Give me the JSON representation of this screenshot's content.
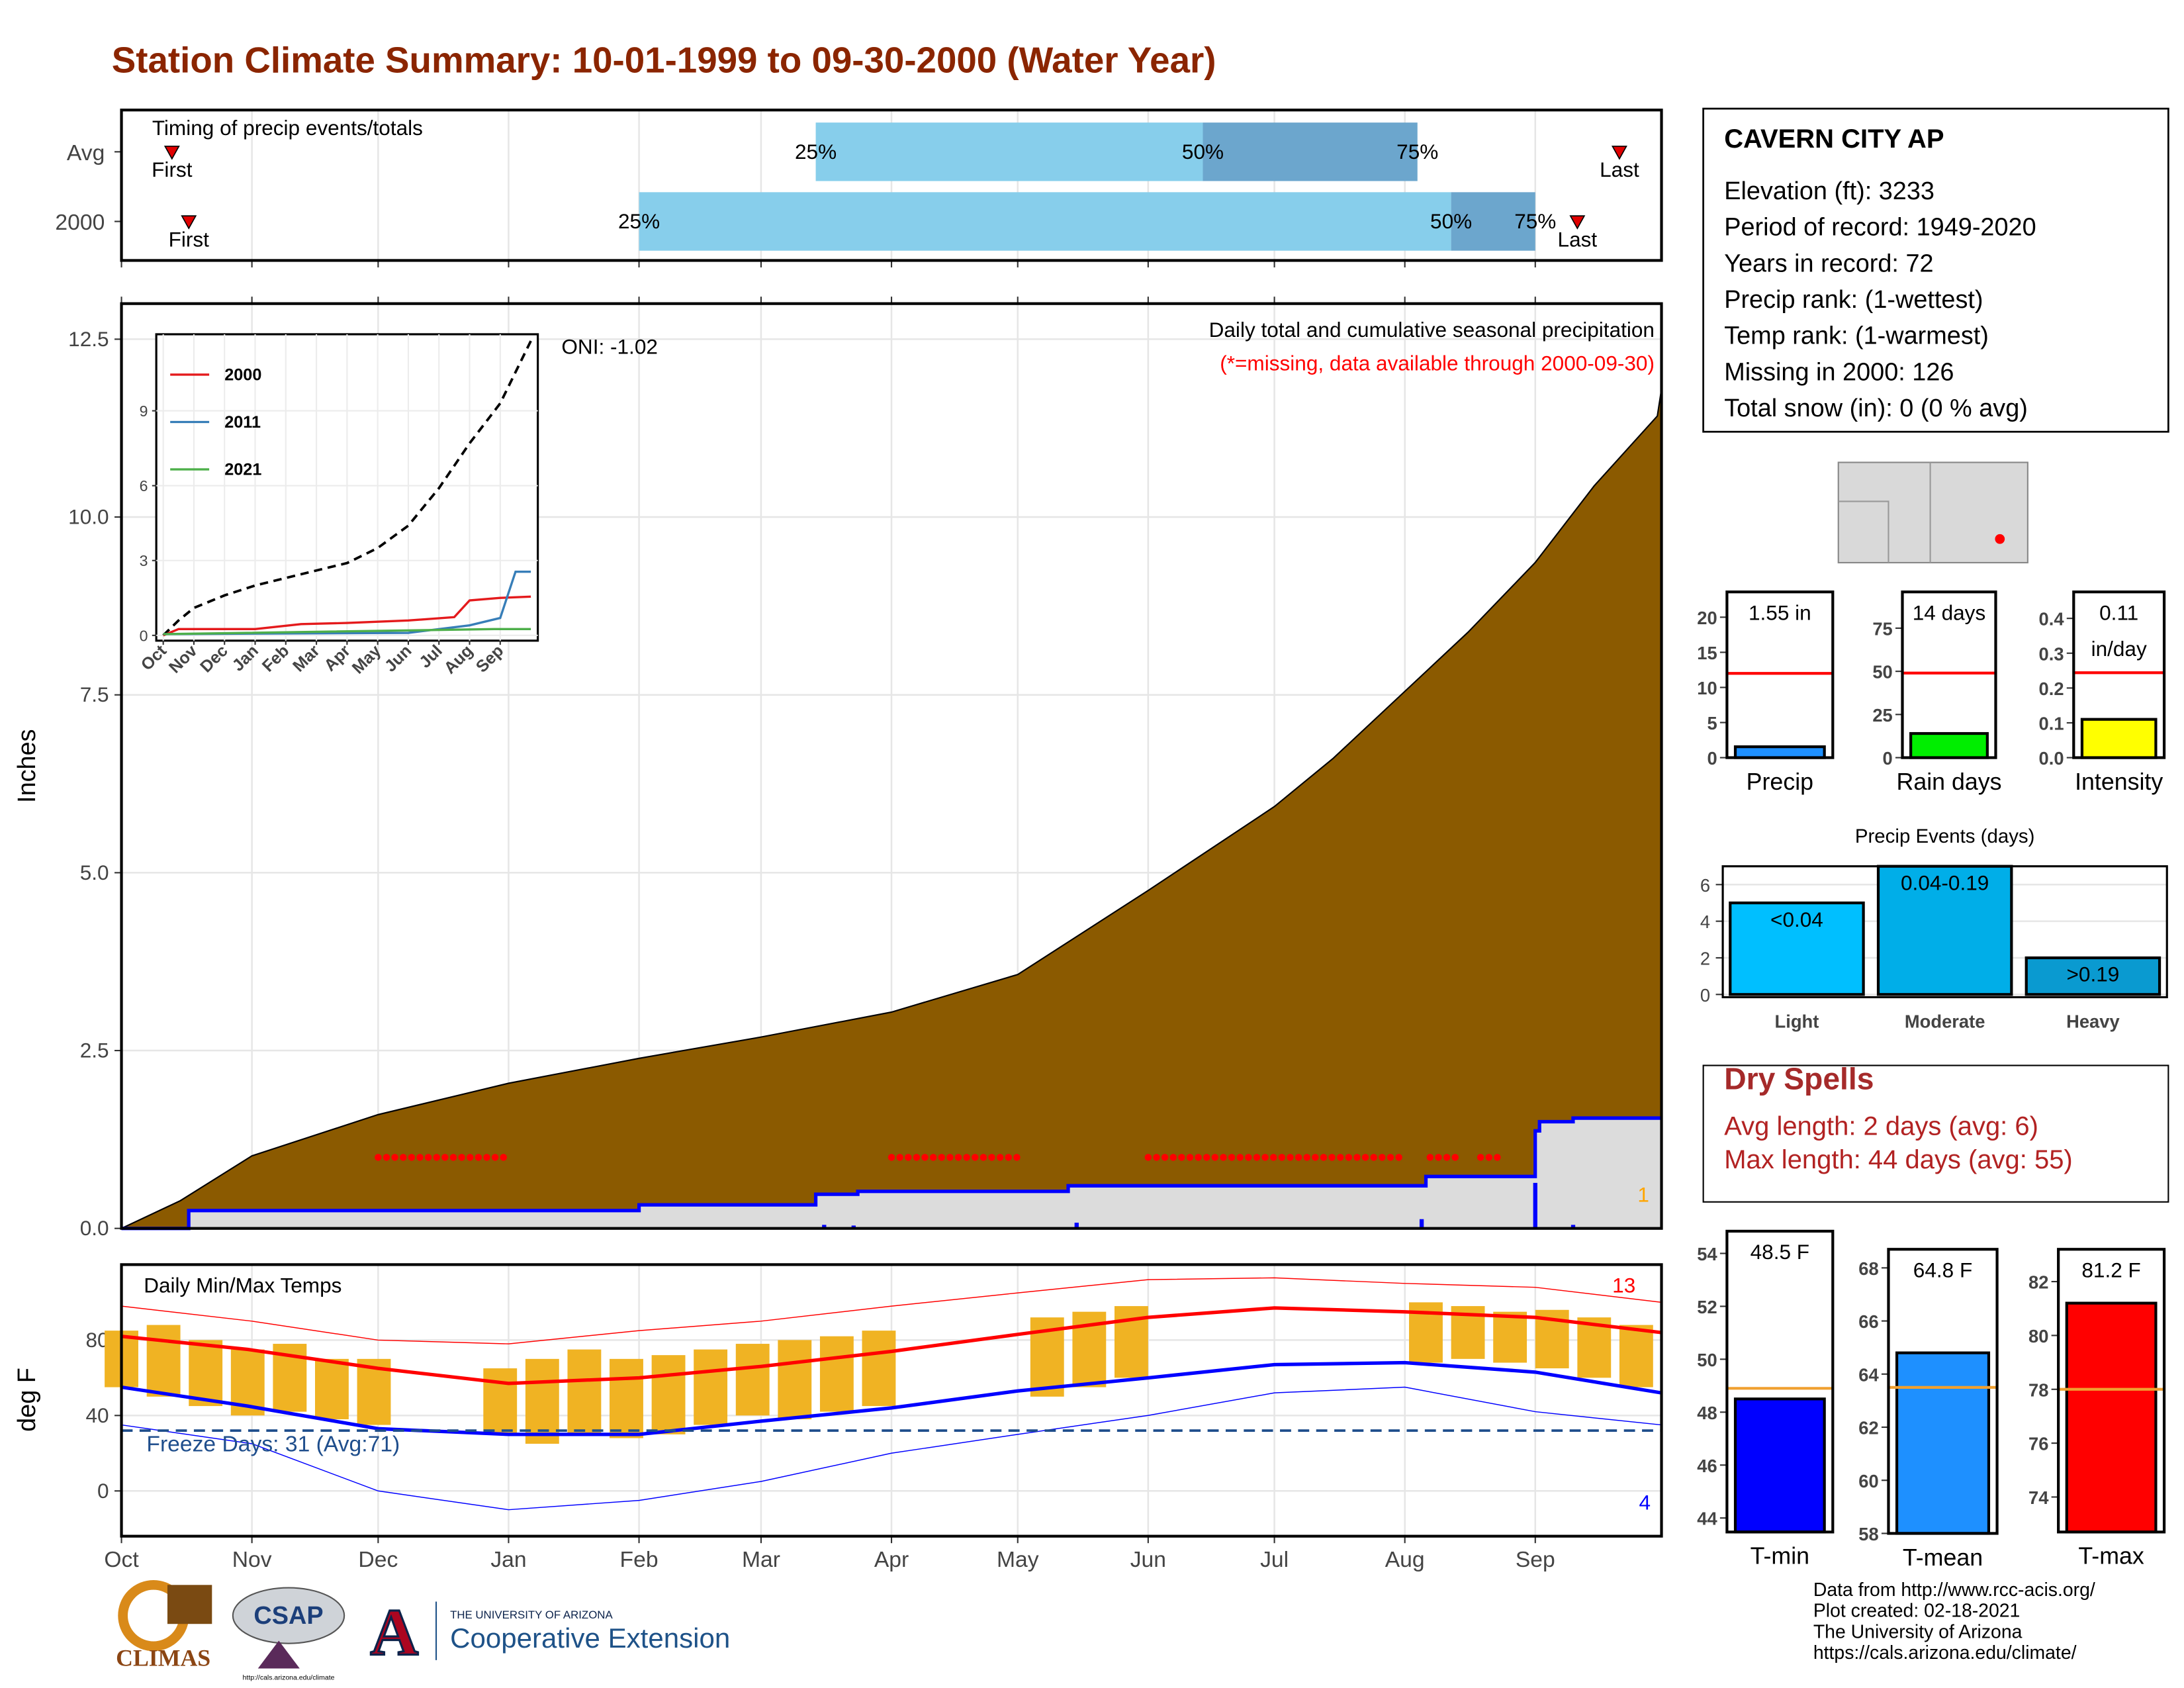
{
  "title": "Station Climate Summary: 10-01-1999 to 09-30-2000 (Water Year)",
  "chart_data": [
    {
      "type": "timing",
      "title": "Timing of precip events/totals",
      "xlim": [
        0,
        366
      ],
      "xticks": [
        0,
        31,
        61,
        92,
        123,
        152,
        183,
        213,
        244,
        274,
        305,
        336
      ],
      "grid": true,
      "labels": {
        "first": "First",
        "last": "Last",
        "p25": "25%",
        "p50": "50%",
        "p75": "75%"
      },
      "colors": [
        "#87ceeb",
        "#6ca6cd"
      ],
      "rows": [
        {
          "label": "Avg",
          "first": 12,
          "p25": 165,
          "p50": 257,
          "p75": 308,
          "last": 356
        },
        {
          "label": "2000",
          "first": 16,
          "p25": 123,
          "p50": 316,
          "p75": 336,
          "last": 346
        }
      ]
    },
    {
      "type": "cumulative",
      "title": "Daily total and cumulative seasonal precipitation",
      "subtitle": "(*=missing, data available through 2000-09-30)",
      "annotation": "ONI: -1.02",
      "corner_label": "1",
      "ylabel": "Inches",
      "xlim": [
        0,
        366
      ],
      "xticks": [
        0,
        31,
        61,
        92,
        123,
        152,
        183,
        213,
        244,
        274,
        305,
        336
      ],
      "ylim": [
        0,
        13
      ],
      "yticks": [
        {
          "value": 0,
          "label": "0.0"
        },
        2.5,
        {
          "value": 5,
          "label": "5.0"
        },
        7.5,
        {
          "value": 10,
          "label": "10.0"
        },
        12.5
      ],
      "grid": true,
      "series": [
        {
          "color": "#8b5a00",
          "fill": true,
          "x": [
            0,
            14,
            31,
            61,
            92,
            123,
            152,
            183,
            213,
            244,
            258,
            274,
            288,
            305,
            320,
            336,
            350,
            365,
            366
          ],
          "values": [
            0,
            0.39,
            1.02,
            1.6,
            2.04,
            2.39,
            2.69,
            3.04,
            3.57,
            4.75,
            5.3,
            5.93,
            6.61,
            7.55,
            8.38,
            9.36,
            10.44,
            11.42,
            11.8
          ]
        },
        {
          "color": "#0000ff",
          "fill_color": "#dcdcdc",
          "x": [
            0,
            16,
            16,
            123,
            123,
            165,
            165,
            175,
            175,
            225,
            225,
            310,
            310,
            336,
            336,
            337,
            337,
            345,
            345,
            366
          ],
          "values": [
            0,
            0,
            0.25,
            0.25,
            0.33,
            0.33,
            0.48,
            0.48,
            0.52,
            0.52,
            0.6,
            0.6,
            0.73,
            0.73,
            1.37,
            1.37,
            1.5,
            1.5,
            1.55,
            1.55
          ]
        }
      ],
      "daily": {
        "color": "#0000ff",
        "x": [
          167,
          174,
          227,
          309,
          336,
          345
        ],
        "values": [
          0.05,
          0.04,
          0.08,
          0.13,
          0.64,
          0.05
        ]
      },
      "missing_periods": [
        [
          61,
          92
        ],
        [
          183,
          213
        ],
        [
          244,
          305
        ],
        [
          311,
          318
        ],
        [
          323,
          327
        ]
      ]
    },
    {
      "type": "line",
      "xlim": [
        0,
        12
      ],
      "ylim": [
        -0.1,
        11.9
      ],
      "yticks": [
        0,
        3,
        6,
        9
      ],
      "xticks": [
        {
          "value": 0,
          "label": "Oct"
        },
        {
          "value": 1,
          "label": "Nov"
        },
        {
          "value": 2,
          "label": "Dec"
        },
        {
          "value": 3,
          "label": "Jan"
        },
        {
          "value": 4,
          "label": "Feb"
        },
        {
          "value": 5,
          "label": "Mar"
        },
        {
          "value": 6,
          "label": "Apr"
        },
        {
          "value": 7,
          "label": "May"
        },
        {
          "value": 8,
          "label": "Jun"
        },
        {
          "value": 9,
          "label": "Jul"
        },
        {
          "value": 10,
          "label": "Aug"
        },
        {
          "value": 11,
          "label": "Sep"
        }
      ],
      "series": [
        {
          "color": "#000000",
          "dashed": true,
          "x": [
            0,
            0.5,
            1,
            2,
            3,
            4,
            5,
            6,
            7,
            8,
            9,
            10,
            11,
            12
          ],
          "values": [
            0,
            0.6,
            1.1,
            1.6,
            2.0,
            2.3,
            2.6,
            2.9,
            3.5,
            4.4,
            5.9,
            7.7,
            9.3,
            11.8
          ]
        },
        {
          "name": "2000",
          "color": "#e41a1c",
          "x": [
            0,
            0.5,
            3,
            4.5,
            6,
            8,
            9.5,
            10,
            11,
            12
          ],
          "values": [
            0,
            0.25,
            0.25,
            0.45,
            0.5,
            0.6,
            0.73,
            1.4,
            1.5,
            1.55
          ]
        },
        {
          "name": "2011",
          "color": "#377eb8",
          "x": [
            0,
            8,
            10,
            11,
            11.5,
            12
          ],
          "values": [
            0.05,
            0.1,
            0.4,
            0.7,
            2.55,
            2.55
          ]
        },
        {
          "name": "2021",
          "color": "#4daf4a",
          "x": [
            0,
            10.8,
            12
          ],
          "values": [
            0.05,
            0.25,
            0.25
          ]
        }
      ]
    },
    {
      "type": "temperature",
      "title": "Daily Min/Max Temps",
      "ylabel": "deg F",
      "freeze_label": "Freeze Days: 31 (Avg:71)",
      "high_count": "13",
      "low_count": "4",
      "xlim": [
        0,
        366
      ],
      "ylim": [
        -24,
        120
      ],
      "yticks": [
        0,
        40,
        80
      ],
      "grid": true,
      "freeze_line": 32,
      "freeze_color": "#1f4e8c",
      "xticks": [
        {
          "value": 0,
          "label": "Oct"
        },
        {
          "value": 31,
          "label": "Nov"
        },
        {
          "value": 61,
          "label": "Dec"
        },
        {
          "value": 92,
          "label": "Jan"
        },
        {
          "value": 123,
          "label": "Feb"
        },
        {
          "value": 152,
          "label": "Mar"
        },
        {
          "value": 183,
          "label": "Apr"
        },
        {
          "value": 213,
          "label": "May"
        },
        {
          "value": 244,
          "label": "Jun"
        },
        {
          "value": 274,
          "label": "Jul"
        },
        {
          "value": 305,
          "label": "Aug"
        },
        {
          "value": 336,
          "label": "Sep"
        }
      ],
      "bar_color": "#f0b323",
      "x": [
        0,
        10,
        20,
        30,
        40,
        50,
        60,
        70,
        80,
        90,
        100,
        110,
        120,
        130,
        140,
        150,
        160,
        170,
        180,
        190,
        200,
        210,
        220,
        230,
        240,
        250,
        260,
        270,
        280,
        290,
        300,
        310,
        320,
        330,
        340,
        350,
        360
      ],
      "daily_max": [
        85,
        88,
        80,
        75,
        78,
        70,
        70,
        null,
        null,
        65,
        70,
        75,
        70,
        72,
        75,
        78,
        80,
        82,
        85,
        null,
        null,
        null,
        92,
        95,
        98,
        null,
        null,
        null,
        null,
        null,
        null,
        100,
        98,
        95,
        96,
        92,
        88
      ],
      "daily_min": [
        55,
        50,
        45,
        40,
        42,
        38,
        35,
        null,
        null,
        30,
        25,
        30,
        28,
        30,
        35,
        40,
        38,
        42,
        45,
        null,
        null,
        null,
        50,
        55,
        60,
        null,
        null,
        null,
        null,
        null,
        null,
        68,
        70,
        68,
        65,
        60,
        55
      ],
      "series": [
        {
          "color": "#ff0000",
          "width": 0.7,
          "x": [
            0,
            31,
            61,
            92,
            123,
            152,
            183,
            213,
            244,
            274,
            305,
            336,
            366
          ],
          "values": [
            98,
            90,
            80,
            78,
            85,
            90,
            98,
            105,
            112,
            113,
            110,
            108,
            100
          ]
        },
        {
          "color": "#0000ff",
          "width": 0.7,
          "x": [
            0,
            31,
            61,
            92,
            123,
            152,
            183,
            213,
            244,
            274,
            305,
            336,
            366
          ],
          "values": [
            35,
            25,
            0,
            -10,
            -5,
            5,
            20,
            30,
            40,
            52,
            55,
            42,
            35
          ]
        },
        {
          "color": "#ff0000",
          "width": 2.5,
          "x": [
            0,
            30,
            61,
            92,
            123,
            152,
            183,
            213,
            244,
            274,
            305,
            336,
            366
          ],
          "values": [
            82,
            75,
            65,
            57,
            60,
            66,
            74,
            83,
            92,
            97,
            95,
            92,
            84
          ]
        },
        {
          "color": "#0000ff",
          "width": 2.5,
          "x": [
            0,
            30,
            61,
            92,
            123,
            152,
            183,
            213,
            244,
            274,
            305,
            336,
            366
          ],
          "values": [
            55,
            45,
            33,
            30,
            30,
            37,
            44,
            53,
            60,
            67,
            68,
            63,
            52
          ]
        }
      ]
    },
    {
      "type": "gauge",
      "xlabel": "Precip",
      "values": [
        1.55
      ],
      "value_labels": [
        "1.55 in"
      ],
      "avg": 12,
      "color": "#1e90ff",
      "avg_color": "#ff0000",
      "ylim": [
        0,
        23.6
      ],
      "yticks": [
        0,
        5,
        10,
        15,
        20
      ]
    },
    {
      "type": "gauge",
      "xlabel": "Rain days",
      "values": [
        14
      ],
      "value_labels": [
        "14 days"
      ],
      "avg": 49,
      "color": "#00ee00",
      "avg_color": "#ff0000",
      "ylim": [
        0,
        96
      ],
      "yticks": [
        0,
        25,
        50,
        75
      ]
    },
    {
      "type": "gauge",
      "xlabel": "Intensity",
      "values": [
        0.11
      ],
      "value_labels": [
        "0.11 in/day"
      ],
      "avg": 0.244,
      "color": "#ffff00",
      "avg_color": "#ff0000",
      "ylim": [
        0,
        0.476
      ],
      "yticks": [
        {
          "value": 0,
          "label": "0.0"
        },
        0.1,
        0.2,
        0.3,
        0.4
      ]
    },
    {
      "type": "bar",
      "title": "Precip Events (days)",
      "categories": [
        "Light",
        "Moderate",
        "Heavy"
      ],
      "values": [
        5,
        7,
        2
      ],
      "value_labels": [
        "<0.04",
        "0.04-0.19",
        ">0.19"
      ],
      "colors": [
        "#00bfff",
        "#00aee8",
        "#0a9ad0"
      ],
      "ylim": [
        -0.15,
        7
      ],
      "yticks": [
        0,
        2,
        4,
        6
      ],
      "grid": true
    },
    {
      "type": "gauge",
      "xlabel": "T-min",
      "values": [
        48.5
      ],
      "value_labels": [
        "48.5 F"
      ],
      "avg": 48.9,
      "color": "#0000ff",
      "avg_color": "#f0a030",
      "ylim": [
        43.47,
        54.84
      ],
      "yticks": [
        44,
        46,
        48,
        50,
        52,
        54
      ]
    },
    {
      "type": "gauge",
      "xlabel": "T-mean",
      "values": [
        64.8
      ],
      "value_labels": [
        "64.8 F"
      ],
      "avg": 63.5,
      "color": "#1e90ff",
      "avg_color": "#f0a030",
      "ylim": [
        58,
        68.7
      ],
      "yticks": [
        58,
        60,
        62,
        64,
        66,
        68
      ]
    },
    {
      "type": "gauge",
      "xlabel": "T-max",
      "values": [
        81.2
      ],
      "value_labels": [
        "81.2 F"
      ],
      "avg": 78,
      "color": "#ff0000",
      "avg_color": "#f0a030",
      "ylim": [
        72.7,
        83.2
      ],
      "yticks": [
        74,
        76,
        78,
        80,
        82
      ]
    }
  ],
  "station": {
    "name": "CAVERN CITY AP",
    "lines": [
      "Elevation (ft): 3233",
      "Period of record: 1949-2020",
      "Years in record: 72",
      "Precip rank:  (1-wettest)",
      "Temp rank:  (1-warmest)",
      "Missing in 2000: 126",
      "Total snow (in): 0 (0 % avg)"
    ]
  },
  "dry_spells": {
    "title": "Dry Spells",
    "lines": [
      "Avg length: 2 days (avg: 6)",
      "Max length: 44 days (avg: 55)"
    ]
  },
  "footer": [
    "Data from http://www.rcc-acis.org/",
    "Plot created: 02-18-2021",
    "The University of Arizona",
    "https://cals.arizona.edu/climate/"
  ],
  "logos": {
    "climas": "CLIMAS",
    "csap": "CSAP",
    "csap_url": "http://cals.arizona.edu/climate",
    "ua_letter": "A",
    "ua_top": "THE UNIVERSITY OF ARIZONA",
    "ua_name": "Cooperative Extension"
  }
}
